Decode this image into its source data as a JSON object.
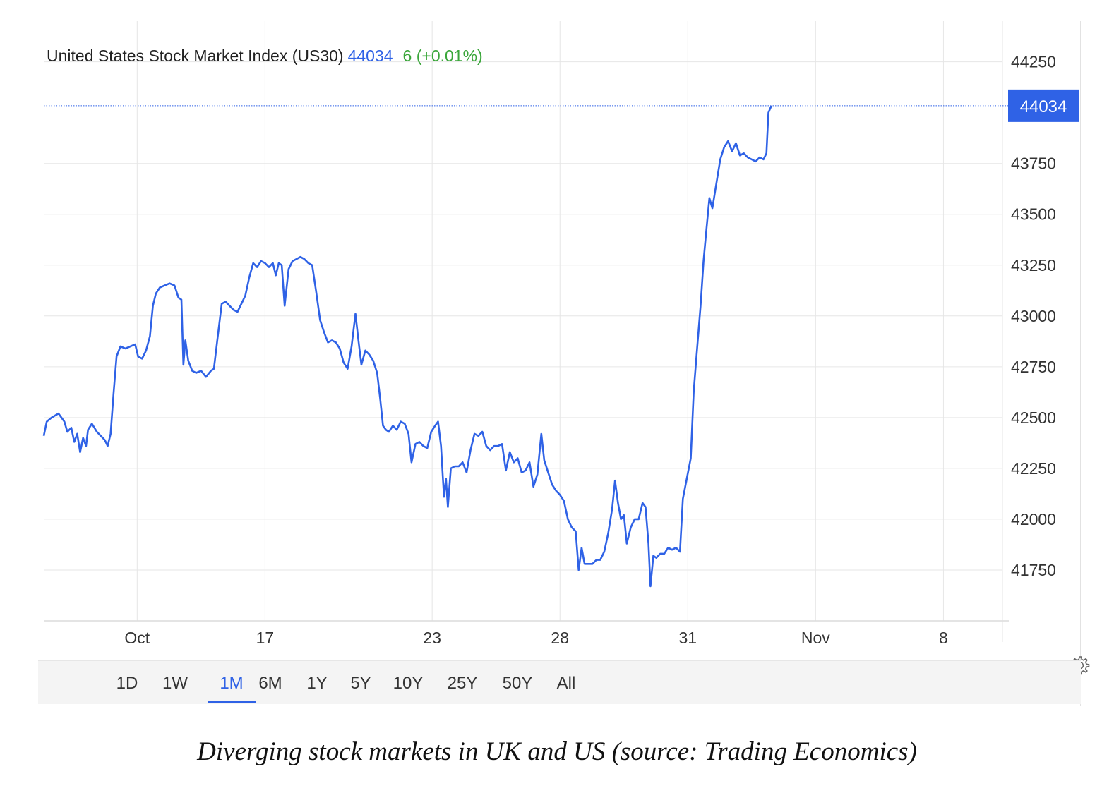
{
  "chart_data": {
    "type": "line",
    "title": "United States Stock Market Index (US30)",
    "last_value": "44034",
    "change_label": "6 (+0.01%)",
    "current_marker": 44034,
    "y_ticks": [
      44250,
      43750,
      43500,
      43250,
      43000,
      42750,
      42500,
      42250,
      42000,
      41750
    ],
    "ylim": [
      41500,
      44450
    ],
    "x_ticks": [
      "Oct",
      "17",
      "23",
      "28",
      "31",
      "Nov",
      "8"
    ],
    "x_tick_positions": [
      12,
      25,
      42,
      55,
      68,
      81,
      94
    ],
    "xlim": [
      2.5,
      100
    ],
    "grid": true,
    "series": [
      {
        "name": "US30",
        "color": "#2f62e6",
        "points": [
          [
            2.5,
            42410
          ],
          [
            2.8,
            42480
          ],
          [
            3.3,
            42500
          ],
          [
            4.0,
            42520
          ],
          [
            4.6,
            42480
          ],
          [
            4.9,
            42430
          ],
          [
            5.3,
            42450
          ],
          [
            5.6,
            42380
          ],
          [
            5.9,
            42420
          ],
          [
            6.2,
            42330
          ],
          [
            6.5,
            42400
          ],
          [
            6.8,
            42360
          ],
          [
            7.0,
            42440
          ],
          [
            7.4,
            42470
          ],
          [
            7.9,
            42430
          ],
          [
            8.3,
            42410
          ],
          [
            8.7,
            42390
          ],
          [
            9.0,
            42360
          ],
          [
            9.3,
            42420
          ],
          [
            9.6,
            42620
          ],
          [
            9.9,
            42800
          ],
          [
            10.3,
            42850
          ],
          [
            10.8,
            42840
          ],
          [
            11.3,
            42850
          ],
          [
            11.8,
            42860
          ],
          [
            12.1,
            42800
          ],
          [
            12.5,
            42790
          ],
          [
            12.9,
            42830
          ],
          [
            13.3,
            42900
          ],
          [
            13.6,
            43050
          ],
          [
            13.9,
            43110
          ],
          [
            14.3,
            43140
          ],
          [
            14.8,
            43150
          ],
          [
            15.3,
            43160
          ],
          [
            15.8,
            43150
          ],
          [
            16.2,
            43090
          ],
          [
            16.5,
            43080
          ],
          [
            16.7,
            42760
          ],
          [
            16.9,
            42880
          ],
          [
            17.2,
            42780
          ],
          [
            17.6,
            42730
          ],
          [
            18.0,
            42720
          ],
          [
            18.5,
            42730
          ],
          [
            19.0,
            42700
          ],
          [
            19.5,
            42730
          ],
          [
            19.8,
            42740
          ],
          [
            20.2,
            42900
          ],
          [
            20.6,
            43060
          ],
          [
            21.0,
            43070
          ],
          [
            21.4,
            43050
          ],
          [
            21.8,
            43030
          ],
          [
            22.2,
            43020
          ],
          [
            22.6,
            43060
          ],
          [
            23.0,
            43100
          ],
          [
            23.4,
            43190
          ],
          [
            23.8,
            43260
          ],
          [
            24.2,
            43240
          ],
          [
            24.6,
            43270
          ],
          [
            25.0,
            43260
          ],
          [
            25.4,
            43240
          ],
          [
            25.8,
            43260
          ],
          [
            26.1,
            43200
          ],
          [
            26.4,
            43260
          ],
          [
            26.7,
            43250
          ],
          [
            27.0,
            43050
          ],
          [
            27.4,
            43230
          ],
          [
            27.8,
            43270
          ],
          [
            28.2,
            43280
          ],
          [
            28.6,
            43290
          ],
          [
            29.0,
            43280
          ],
          [
            29.4,
            43260
          ],
          [
            29.8,
            43250
          ],
          [
            30.2,
            43120
          ],
          [
            30.6,
            42980
          ],
          [
            31.0,
            42920
          ],
          [
            31.4,
            42870
          ],
          [
            31.8,
            42880
          ],
          [
            32.2,
            42870
          ],
          [
            32.6,
            42840
          ],
          [
            33.0,
            42770
          ],
          [
            33.4,
            42740
          ],
          [
            33.8,
            42850
          ],
          [
            34.2,
            43010
          ],
          [
            34.5,
            42880
          ],
          [
            34.8,
            42760
          ],
          [
            35.2,
            42830
          ],
          [
            35.6,
            42810
          ],
          [
            36.0,
            42780
          ],
          [
            36.4,
            42720
          ],
          [
            36.7,
            42600
          ],
          [
            37.0,
            42460
          ],
          [
            37.3,
            42440
          ],
          [
            37.6,
            42430
          ],
          [
            38.0,
            42460
          ],
          [
            38.4,
            42440
          ],
          [
            38.8,
            42480
          ],
          [
            39.2,
            42470
          ],
          [
            39.6,
            42420
          ],
          [
            39.9,
            42280
          ],
          [
            40.3,
            42370
          ],
          [
            40.7,
            42380
          ],
          [
            41.1,
            42360
          ],
          [
            41.5,
            42350
          ],
          [
            41.9,
            42430
          ],
          [
            42.3,
            42460
          ],
          [
            42.6,
            42480
          ],
          [
            42.9,
            42360
          ],
          [
            43.2,
            42110
          ],
          [
            43.4,
            42200
          ],
          [
            43.6,
            42060
          ],
          [
            43.9,
            42250
          ],
          [
            44.3,
            42260
          ],
          [
            44.7,
            42260
          ],
          [
            45.1,
            42280
          ],
          [
            45.5,
            42230
          ],
          [
            45.9,
            42340
          ],
          [
            46.3,
            42420
          ],
          [
            46.7,
            42410
          ],
          [
            47.1,
            42430
          ],
          [
            47.5,
            42360
          ],
          [
            47.9,
            42340
          ],
          [
            48.3,
            42360
          ],
          [
            48.7,
            42360
          ],
          [
            49.1,
            42370
          ],
          [
            49.5,
            42240
          ],
          [
            49.9,
            42330
          ],
          [
            50.3,
            42280
          ],
          [
            50.7,
            42300
          ],
          [
            51.1,
            42230
          ],
          [
            51.5,
            42240
          ],
          [
            51.9,
            42280
          ],
          [
            52.3,
            42160
          ],
          [
            52.7,
            42220
          ],
          [
            53.1,
            42420
          ],
          [
            53.4,
            42290
          ],
          [
            53.8,
            42230
          ],
          [
            54.2,
            42170
          ],
          [
            54.6,
            42140
          ],
          [
            55.0,
            42120
          ],
          [
            55.4,
            42090
          ],
          [
            55.8,
            42000
          ],
          [
            56.2,
            41960
          ],
          [
            56.6,
            41940
          ],
          [
            56.9,
            41750
          ],
          [
            57.2,
            41860
          ],
          [
            57.5,
            41780
          ],
          [
            57.9,
            41780
          ],
          [
            58.3,
            41780
          ],
          [
            58.7,
            41800
          ],
          [
            59.1,
            41800
          ],
          [
            59.5,
            41840
          ],
          [
            59.9,
            41930
          ],
          [
            60.3,
            42050
          ],
          [
            60.6,
            42190
          ],
          [
            60.9,
            42080
          ],
          [
            61.2,
            42000
          ],
          [
            61.5,
            42020
          ],
          [
            61.8,
            41880
          ],
          [
            62.2,
            41960
          ],
          [
            62.6,
            42000
          ],
          [
            63.0,
            42000
          ],
          [
            63.4,
            42080
          ],
          [
            63.7,
            42060
          ],
          [
            64.0,
            41880
          ],
          [
            64.2,
            41670
          ],
          [
            64.5,
            41820
          ],
          [
            64.8,
            41810
          ],
          [
            65.2,
            41830
          ],
          [
            65.6,
            41830
          ],
          [
            66.0,
            41860
          ],
          [
            66.4,
            41850
          ],
          [
            66.8,
            41860
          ],
          [
            67.2,
            41840
          ],
          [
            67.5,
            42100
          ],
          [
            67.9,
            42200
          ],
          [
            68.3,
            42300
          ],
          [
            68.6,
            42630
          ],
          [
            68.9,
            42810
          ],
          [
            69.3,
            43050
          ],
          [
            69.6,
            43270
          ],
          [
            69.9,
            43430
          ],
          [
            70.2,
            43580
          ],
          [
            70.5,
            43530
          ],
          [
            70.9,
            43650
          ],
          [
            71.3,
            43770
          ],
          [
            71.7,
            43830
          ],
          [
            72.1,
            43860
          ],
          [
            72.5,
            43810
          ],
          [
            72.9,
            43850
          ],
          [
            73.3,
            43790
          ],
          [
            73.7,
            43800
          ],
          [
            74.1,
            43780
          ],
          [
            74.5,
            43770
          ],
          [
            74.9,
            43760
          ],
          [
            75.3,
            43780
          ],
          [
            75.7,
            43770
          ],
          [
            76.0,
            43800
          ],
          [
            76.2,
            44000
          ],
          [
            76.5,
            44034
          ]
        ]
      }
    ]
  },
  "range_buttons": [
    "1D",
    "1W",
    "1M",
    "6M",
    "1Y",
    "5Y",
    "10Y",
    "25Y",
    "50Y",
    "All"
  ],
  "active_range": "1M",
  "settings_icon": "gear-icon",
  "caption": "Diverging stock markets in UK and US (source: Trading Economics)"
}
